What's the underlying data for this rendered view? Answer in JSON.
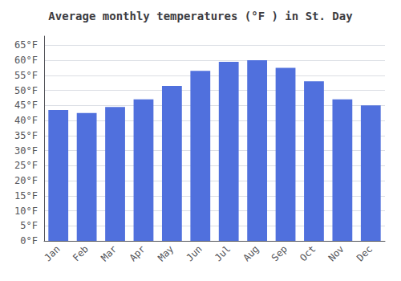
{
  "chart_data": {
    "type": "bar",
    "title": "Average monthly temperatures (°F ) in St. Day",
    "categories": [
      "Jan",
      "Feb",
      "Mar",
      "Apr",
      "May",
      "Jun",
      "Jul",
      "Aug",
      "Sep",
      "Oct",
      "Nov",
      "Dec"
    ],
    "values": [
      43.5,
      42.5,
      44.5,
      47.0,
      51.5,
      56.5,
      59.5,
      60.0,
      57.5,
      53.0,
      47.0,
      45.0
    ],
    "ylim": [
      0,
      68
    ],
    "yticks": [
      {
        "value": 0,
        "label": "0°F"
      },
      {
        "value": 5,
        "label": "5°F"
      },
      {
        "value": 10,
        "label": "10°F"
      },
      {
        "value": 15,
        "label": "15°F"
      },
      {
        "value": 20,
        "label": "20°F"
      },
      {
        "value": 25,
        "label": "25°F"
      },
      {
        "value": 30,
        "label": "30°F"
      },
      {
        "value": 35,
        "label": "35°F"
      },
      {
        "value": 40,
        "label": "40°F"
      },
      {
        "value": 45,
        "label": "45°F"
      },
      {
        "value": 50,
        "label": "50°F"
      },
      {
        "value": 55,
        "label": "55°F"
      },
      {
        "value": 60,
        "label": "60°F"
      },
      {
        "value": 65,
        "label": "65°F"
      }
    ],
    "grid": true
  }
}
